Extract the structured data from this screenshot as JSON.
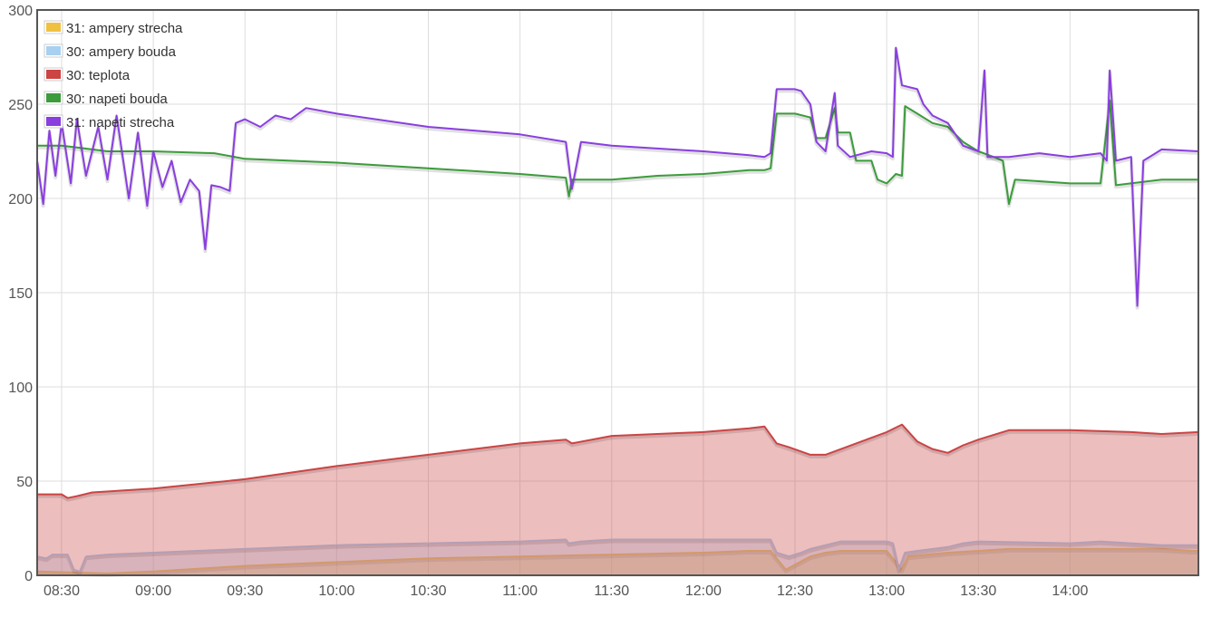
{
  "chart_data": {
    "type": "line",
    "title": "",
    "xlabel": "",
    "ylabel": "",
    "ylim": [
      0,
      300
    ],
    "xlim": [
      "08:22",
      "14:42"
    ],
    "y_ticks": [
      0,
      50,
      100,
      150,
      200,
      250,
      300
    ],
    "x_ticks": [
      "08:30",
      "09:00",
      "09:30",
      "10:00",
      "10:30",
      "11:00",
      "11:30",
      "12:00",
      "12:30",
      "13:00",
      "13:30",
      "14:00"
    ],
    "grid": true,
    "legend_position": "top-left",
    "series": [
      {
        "name": "31: ampery strecha",
        "color": "#f0c040",
        "style": "area",
        "points": [
          [
            "08:22",
            2
          ],
          [
            "08:45",
            1
          ],
          [
            "09:00",
            2
          ],
          [
            "09:30",
            5
          ],
          [
            "10:00",
            7
          ],
          [
            "10:30",
            9
          ],
          [
            "11:00",
            10
          ],
          [
            "11:30",
            11
          ],
          [
            "12:00",
            12
          ],
          [
            "12:15",
            13
          ],
          [
            "12:22",
            13
          ],
          [
            "12:27",
            3
          ],
          [
            "12:35",
            10
          ],
          [
            "12:40",
            12
          ],
          [
            "12:45",
            13
          ],
          [
            "13:00",
            13
          ],
          [
            "13:05",
            3
          ],
          [
            "13:07",
            10
          ],
          [
            "13:20",
            12
          ],
          [
            "13:30",
            13
          ],
          [
            "13:40",
            14
          ],
          [
            "14:00",
            14
          ],
          [
            "14:30",
            14
          ],
          [
            "14:40",
            13
          ],
          [
            "14:42",
            13
          ]
        ]
      },
      {
        "name": "30: ampery bouda",
        "color": "#a8d0f0",
        "style": "area",
        "points": [
          [
            "08:22",
            10
          ],
          [
            "08:25",
            9
          ],
          [
            "08:27",
            11
          ],
          [
            "08:32",
            11
          ],
          [
            "08:34",
            3
          ],
          [
            "08:36",
            2
          ],
          [
            "08:38",
            10
          ],
          [
            "08:45",
            11
          ],
          [
            "09:00",
            12
          ],
          [
            "09:30",
            14
          ],
          [
            "10:00",
            16
          ],
          [
            "10:30",
            17
          ],
          [
            "11:00",
            18
          ],
          [
            "11:15",
            19
          ],
          [
            "11:16",
            17
          ],
          [
            "11:20",
            18
          ],
          [
            "11:30",
            19
          ],
          [
            "12:00",
            19
          ],
          [
            "12:22",
            19
          ],
          [
            "12:24",
            12
          ],
          [
            "12:28",
            10
          ],
          [
            "12:32",
            12
          ],
          [
            "12:35",
            14
          ],
          [
            "12:40",
            16
          ],
          [
            "12:45",
            18
          ],
          [
            "13:00",
            18
          ],
          [
            "13:02",
            17
          ],
          [
            "13:04",
            3
          ],
          [
            "13:06",
            12
          ],
          [
            "13:10",
            13
          ],
          [
            "13:20",
            15
          ],
          [
            "13:25",
            17
          ],
          [
            "13:30",
            18
          ],
          [
            "14:00",
            17
          ],
          [
            "14:10",
            18
          ],
          [
            "14:30",
            16
          ],
          [
            "14:42",
            16
          ]
        ]
      },
      {
        "name": "30: teplota",
        "color": "#cc4444",
        "style": "area",
        "points": [
          [
            "08:22",
            43
          ],
          [
            "08:30",
            43
          ],
          [
            "08:32",
            41
          ],
          [
            "08:35",
            42
          ],
          [
            "08:40",
            44
          ],
          [
            "09:00",
            46
          ],
          [
            "09:30",
            51
          ],
          [
            "10:00",
            58
          ],
          [
            "10:30",
            64
          ],
          [
            "11:00",
            70
          ],
          [
            "11:15",
            72
          ],
          [
            "11:17",
            70
          ],
          [
            "11:30",
            74
          ],
          [
            "12:00",
            76
          ],
          [
            "12:15",
            78
          ],
          [
            "12:20",
            79
          ],
          [
            "12:24",
            70
          ],
          [
            "12:28",
            68
          ],
          [
            "12:35",
            64
          ],
          [
            "12:40",
            64
          ],
          [
            "12:50",
            70
          ],
          [
            "13:00",
            76
          ],
          [
            "13:05",
            80
          ],
          [
            "13:10",
            71
          ],
          [
            "13:15",
            67
          ],
          [
            "13:20",
            65
          ],
          [
            "13:25",
            69
          ],
          [
            "13:30",
            72
          ],
          [
            "13:40",
            77
          ],
          [
            "14:00",
            77
          ],
          [
            "14:20",
            76
          ],
          [
            "14:30",
            75
          ],
          [
            "14:42",
            76
          ]
        ]
      },
      {
        "name": "30: napeti bouda",
        "color": "#3c9c3c",
        "style": "line",
        "points": [
          [
            "08:22",
            228
          ],
          [
            "08:30",
            228
          ],
          [
            "08:35",
            227
          ],
          [
            "08:45",
            225
          ],
          [
            "09:00",
            225
          ],
          [
            "09:20",
            224
          ],
          [
            "09:30",
            221
          ],
          [
            "10:00",
            219
          ],
          [
            "10:30",
            216
          ],
          [
            "11:00",
            213
          ],
          [
            "11:15",
            211
          ],
          [
            "11:16",
            201
          ],
          [
            "11:17",
            210
          ],
          [
            "11:30",
            210
          ],
          [
            "11:45",
            212
          ],
          [
            "12:00",
            213
          ],
          [
            "12:15",
            215
          ],
          [
            "12:20",
            215
          ],
          [
            "12:22",
            216
          ],
          [
            "12:24",
            245
          ],
          [
            "12:30",
            245
          ],
          [
            "12:35",
            243
          ],
          [
            "12:37",
            232
          ],
          [
            "12:40",
            232
          ],
          [
            "12:43",
            248
          ],
          [
            "12:44",
            235
          ],
          [
            "12:48",
            235
          ],
          [
            "12:50",
            220
          ],
          [
            "12:55",
            220
          ],
          [
            "12:57",
            210
          ],
          [
            "13:00",
            208
          ],
          [
            "13:03",
            213
          ],
          [
            "13:05",
            212
          ],
          [
            "13:06",
            249
          ],
          [
            "13:10",
            245
          ],
          [
            "13:15",
            240
          ],
          [
            "13:20",
            238
          ],
          [
            "13:25",
            230
          ],
          [
            "13:30",
            225
          ],
          [
            "13:35",
            222
          ],
          [
            "13:38",
            220
          ],
          [
            "13:40",
            197
          ],
          [
            "13:42",
            210
          ],
          [
            "14:00",
            208
          ],
          [
            "14:10",
            208
          ],
          [
            "14:13",
            252
          ],
          [
            "14:15",
            207
          ],
          [
            "14:30",
            210
          ],
          [
            "14:42",
            210
          ]
        ]
      },
      {
        "name": "31: napeti strecha",
        "color": "#8a3ee0",
        "style": "line",
        "points": [
          [
            "08:22",
            220
          ],
          [
            "08:24",
            197
          ],
          [
            "08:26",
            236
          ],
          [
            "08:28",
            212
          ],
          [
            "08:30",
            240
          ],
          [
            "08:33",
            208
          ],
          [
            "08:35",
            242
          ],
          [
            "08:38",
            212
          ],
          [
            "08:42",
            238
          ],
          [
            "08:45",
            210
          ],
          [
            "08:48",
            244
          ],
          [
            "08:52",
            200
          ],
          [
            "08:55",
            235
          ],
          [
            "08:58",
            196
          ],
          [
            "09:00",
            225
          ],
          [
            "09:03",
            206
          ],
          [
            "09:06",
            220
          ],
          [
            "09:09",
            198
          ],
          [
            "09:12",
            210
          ],
          [
            "09:15",
            204
          ],
          [
            "09:17",
            173
          ],
          [
            "09:19",
            207
          ],
          [
            "09:22",
            206
          ],
          [
            "09:25",
            204
          ],
          [
            "09:27",
            240
          ],
          [
            "09:30",
            242
          ],
          [
            "09:35",
            238
          ],
          [
            "09:40",
            244
          ],
          [
            "09:45",
            242
          ],
          [
            "09:50",
            248
          ],
          [
            "10:00",
            245
          ],
          [
            "10:30",
            238
          ],
          [
            "11:00",
            234
          ],
          [
            "11:15",
            230
          ],
          [
            "11:17",
            205
          ],
          [
            "11:20",
            230
          ],
          [
            "11:30",
            228
          ],
          [
            "12:00",
            225
          ],
          [
            "12:15",
            223
          ],
          [
            "12:20",
            222
          ],
          [
            "12:22",
            224
          ],
          [
            "12:24",
            258
          ],
          [
            "12:30",
            258
          ],
          [
            "12:32",
            257
          ],
          [
            "12:35",
            250
          ],
          [
            "12:37",
            230
          ],
          [
            "12:40",
            225
          ],
          [
            "12:43",
            256
          ],
          [
            "12:44",
            228
          ],
          [
            "12:48",
            222
          ],
          [
            "12:55",
            225
          ],
          [
            "13:00",
            224
          ],
          [
            "13:02",
            222
          ],
          [
            "13:03",
            280
          ],
          [
            "13:05",
            260
          ],
          [
            "13:10",
            258
          ],
          [
            "13:12",
            250
          ],
          [
            "13:15",
            244
          ],
          [
            "13:20",
            240
          ],
          [
            "13:25",
            228
          ],
          [
            "13:30",
            225
          ],
          [
            "13:32",
            268
          ],
          [
            "13:33",
            222
          ],
          [
            "13:40",
            222
          ],
          [
            "13:50",
            224
          ],
          [
            "14:00",
            222
          ],
          [
            "14:10",
            224
          ],
          [
            "14:12",
            220
          ],
          [
            "14:13",
            268
          ],
          [
            "14:15",
            220
          ],
          [
            "14:20",
            222
          ],
          [
            "14:22",
            143
          ],
          [
            "14:24",
            220
          ],
          [
            "14:30",
            226
          ],
          [
            "14:42",
            225
          ]
        ]
      }
    ]
  }
}
